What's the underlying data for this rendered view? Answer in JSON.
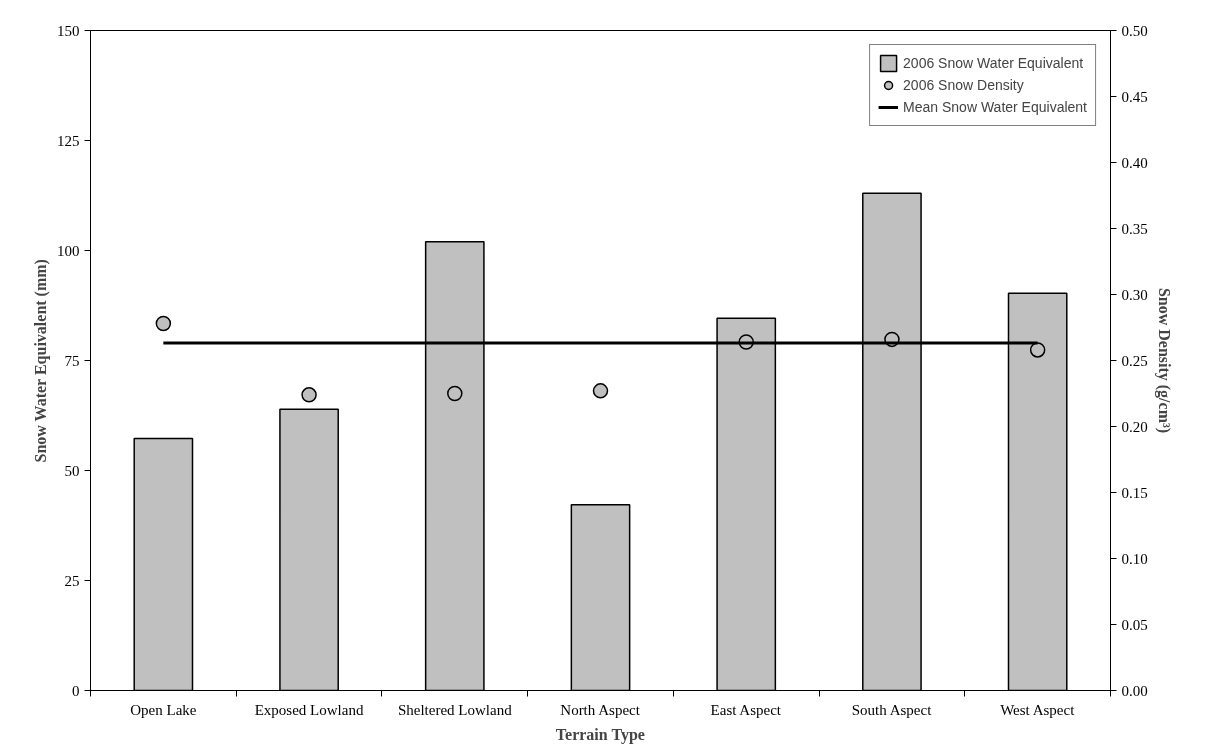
{
  "chart_data": {
    "type": "bar",
    "xlabel": "Terrain Type",
    "ylabel": "Snow Water Equivalent (mm)",
    "y2label": "Snow Density (g/cm³)",
    "categories": [
      "Open Lake",
      "Exposed Lowland",
      "Sheltered Lowland",
      "North Aspect",
      "East Aspect",
      "South Aspect",
      "West Aspect"
    ],
    "series": [
      {
        "name": "2006 Snow Water Equivalent",
        "color": "#c0c0c0",
        "values": [
          57.3,
          63.9,
          102,
          42.2,
          84.6,
          113,
          90.3
        ]
      },
      {
        "name": "2006 Snow Density",
        "type": "scatter",
        "axis": "y2",
        "color": "#c0c0c0",
        "marker": "circle",
        "values": [
          0.278,
          0.224,
          0.225,
          0.227,
          0.264,
          0.266,
          0.258
        ]
      },
      {
        "name": "Mean Snow Water Equivalent",
        "type": "line",
        "color": "#000000",
        "marker": "none",
        "line_style": "solid",
        "values": [
          79,
          79,
          79,
          79,
          79,
          79,
          79
        ]
      }
    ],
    "ylim": [
      0,
      150
    ],
    "yticks": [
      0,
      25,
      50,
      75,
      100,
      125,
      150
    ],
    "y2lim": [
      0,
      0.5
    ],
    "y2ticks": [
      {
        "value": 0,
        "label": "0.00"
      },
      {
        "value": 0.05,
        "label": "0.05"
      },
      {
        "value": 0.1,
        "label": "0.10"
      },
      {
        "value": 0.15,
        "label": "0.15"
      },
      {
        "value": 0.2,
        "label": "0.20"
      },
      {
        "value": 0.25,
        "label": "0.25"
      },
      {
        "value": 0.3,
        "label": "0.30"
      },
      {
        "value": 0.35,
        "label": "0.35"
      },
      {
        "value": 0.4,
        "label": "0.40"
      },
      {
        "value": 0.45,
        "label": "0.45"
      },
      {
        "value": 0.5,
        "label": "0.50"
      }
    ],
    "grid": false,
    "legend": "top right"
  }
}
